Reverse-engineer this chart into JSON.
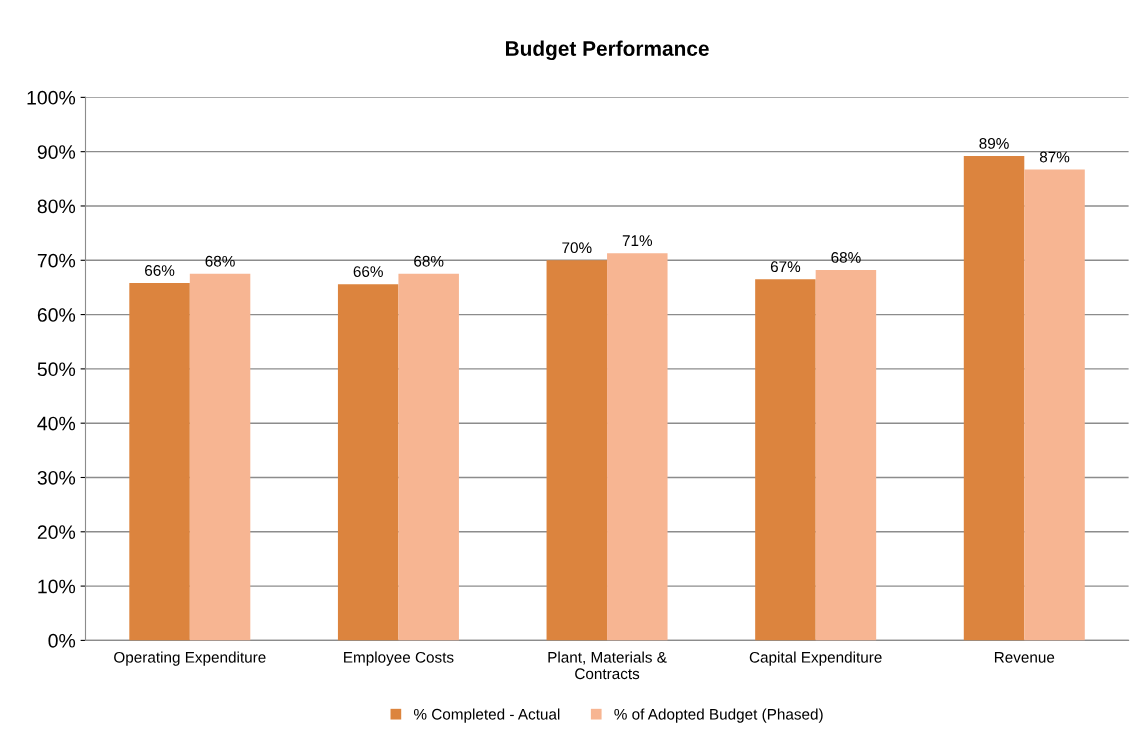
{
  "chart_data": {
    "type": "bar",
    "title": "Budget Performance",
    "categories": [
      "Operating Expenditure",
      "Employee Costs",
      "Plant, Materials &\nContracts",
      "Capital Expenditure",
      "Revenue"
    ],
    "series": [
      {
        "name": "% Completed - Actual",
        "color": "#dc843e",
        "values": [
          65.8,
          65.6,
          70.0,
          66.5,
          89.2
        ],
        "value_labels": [
          "66%",
          "66%",
          "70%",
          "67%",
          "89%"
        ]
      },
      {
        "name": "% of Adopted Budget (Phased)",
        "color": "#f7b592",
        "values": [
          67.5,
          67.5,
          71.3,
          68.2,
          86.7
        ],
        "value_labels": [
          "68%",
          "68%",
          "71%",
          "68%",
          "87%"
        ]
      }
    ],
    "ylim": [
      0,
      100
    ],
    "yticks": [
      {
        "value": 0,
        "label": "0%"
      },
      {
        "value": 10,
        "label": "10%"
      },
      {
        "value": 20,
        "label": "20%"
      },
      {
        "value": 30,
        "label": "30%"
      },
      {
        "value": 40,
        "label": "40%"
      },
      {
        "value": 50,
        "label": "50%"
      },
      {
        "value": 60,
        "label": "60%"
      },
      {
        "value": 70,
        "label": "70%"
      },
      {
        "value": 80,
        "label": "80%"
      },
      {
        "value": 90,
        "label": "90%"
      },
      {
        "value": 100,
        "label": "100%"
      }
    ],
    "grid": "y",
    "legend": "bottom"
  }
}
